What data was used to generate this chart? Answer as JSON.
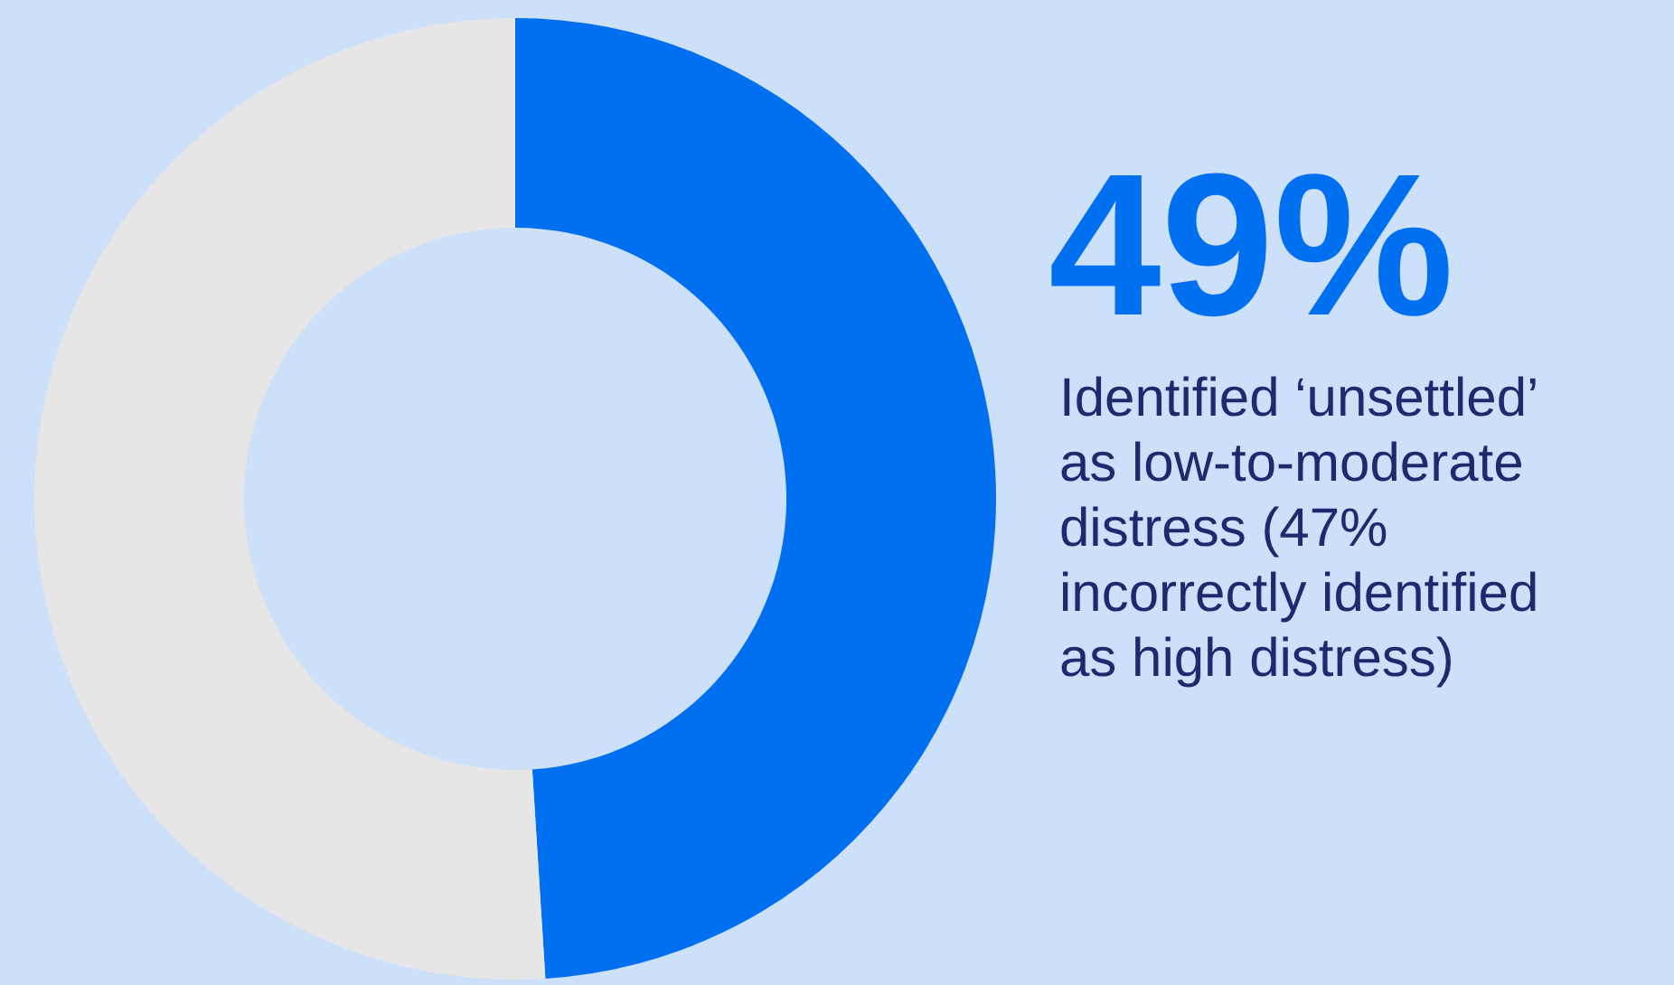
{
  "chart_data": {
    "type": "donut",
    "categories": [
      null,
      null
    ],
    "values": [
      49,
      51
    ],
    "colors": [
      "#0070f0",
      "#e6e6e6"
    ],
    "value_labels": [
      "49%",
      null
    ],
    "annotations": [
      "Identified ‘unsettled’\nas low-to-moderate\ndistress (47%\nincorrectly identified\nas high distress)"
    ]
  }
}
